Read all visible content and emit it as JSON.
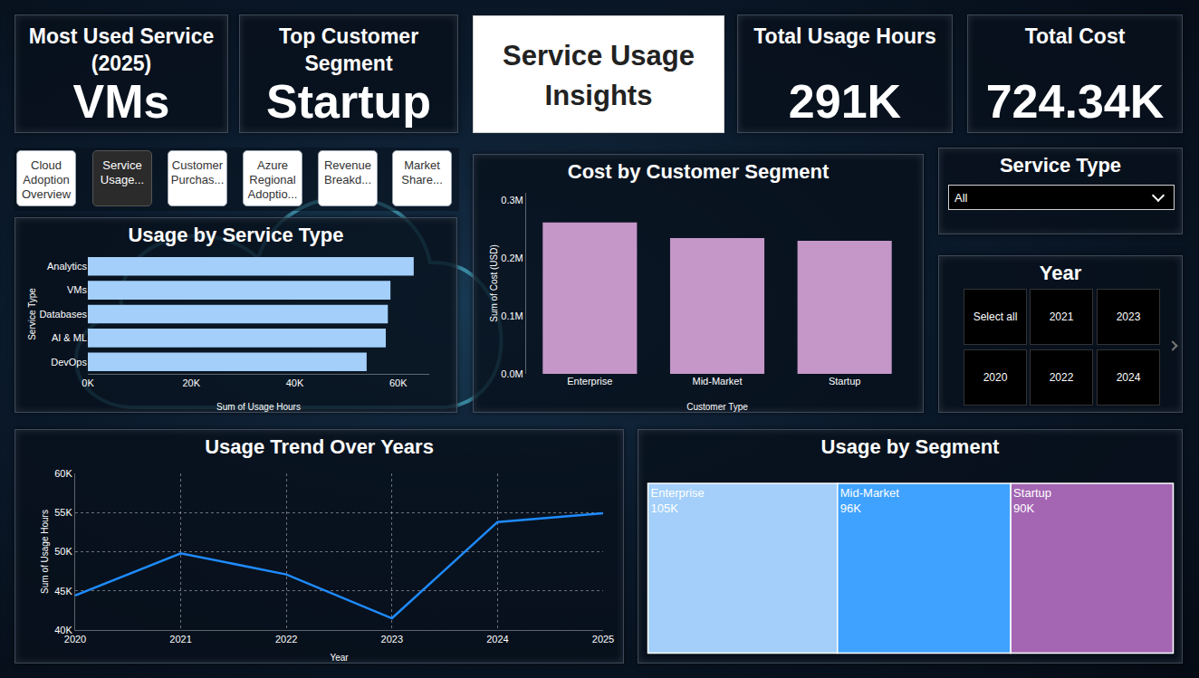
{
  "header": {
    "title": "Service Usage Insights"
  },
  "kpis": [
    {
      "label": "Most Used Service (2025)",
      "value": "VMs"
    },
    {
      "label": "Top Customer Segment",
      "value": "Startup"
    },
    {
      "label": "Total Usage Hours",
      "value": "291K"
    },
    {
      "label": "Total Cost",
      "value": "724.34K"
    }
  ],
  "nav": {
    "items": [
      "Cloud Adoption Overview",
      "Service Usage...",
      "Customer Purchas...",
      "Azure Regional Adoptio...",
      "Revenue Breakd...",
      "Market Share..."
    ],
    "active": "Service Usage..."
  },
  "filters": {
    "service_type": {
      "title": "Service Type",
      "selected": "All"
    },
    "year": {
      "title": "Year",
      "options": [
        "Select all",
        "2020",
        "2021",
        "2022",
        "2023",
        "2024"
      ]
    }
  },
  "chart_data": [
    {
      "type": "bar",
      "title": "Usage by Service Type",
      "orientation": "horizontal",
      "categories": [
        "Analytics",
        "VMs",
        "Databases",
        "AI & ML",
        "DevOps"
      ],
      "values": [
        63000,
        58500,
        58000,
        57600,
        53900
      ],
      "color": "#a3cffa",
      "xlim": [
        0,
        66000
      ],
      "xticks": [
        {
          "value": 0,
          "label": "0K"
        },
        {
          "value": 20000,
          "label": "20K"
        },
        {
          "value": 40000,
          "label": "40K"
        },
        {
          "value": 60000,
          "label": "60K"
        }
      ],
      "x_label": "Sum of Usage Hours",
      "y_label": "Service Type",
      "grid": false
    },
    {
      "type": "bar",
      "title": "Cost by Customer Segment",
      "categories": [
        "Enterprise",
        "Mid-Market",
        "Startup"
      ],
      "values": [
        261000,
        234000,
        229340
      ],
      "color": "#c597c8",
      "ylim": [
        0,
        312000
      ],
      "yticks": [
        {
          "value": 0,
          "label": "0.0M"
        },
        {
          "value": 100000,
          "label": "0.1M"
        },
        {
          "value": 200000,
          "label": "0.2M"
        },
        {
          "value": 300000,
          "label": "0.3M"
        }
      ],
      "x_label": "Customer Type",
      "y_label": "Sum of Cost (USD)",
      "grid": false
    },
    {
      "type": "line",
      "title": "Usage Trend Over Years",
      "x": [
        2020,
        2021,
        2022,
        2023,
        2024,
        2025
      ],
      "values": [
        44400,
        49800,
        47100,
        41500,
        53800,
        54900
      ],
      "color": "#1f8bff",
      "xlim": [
        2020,
        2025
      ],
      "xticks": [
        2020,
        2021,
        2022,
        2023,
        2024,
        2025
      ],
      "ylim": [
        40000,
        60000
      ],
      "yticks": [
        {
          "value": 40000,
          "label": "40K"
        },
        {
          "value": 45000,
          "label": "45K"
        },
        {
          "value": 50000,
          "label": "50K"
        },
        {
          "value": 55000,
          "label": "55K"
        },
        {
          "value": 60000,
          "label": "60K"
        }
      ],
      "x_label": "Year",
      "y_label": "Sum of Usage Hours",
      "grid": true
    },
    {
      "type": "treemap",
      "title": "Usage by Segment",
      "categories": [
        "Enterprise",
        "Mid-Market",
        "Startup"
      ],
      "values": [
        105000,
        96000,
        90000
      ],
      "value_labels": [
        "105K",
        "96K",
        "90K"
      ],
      "colors": [
        "#a3cffa",
        "#40a2ff",
        "#a466b3"
      ]
    }
  ]
}
